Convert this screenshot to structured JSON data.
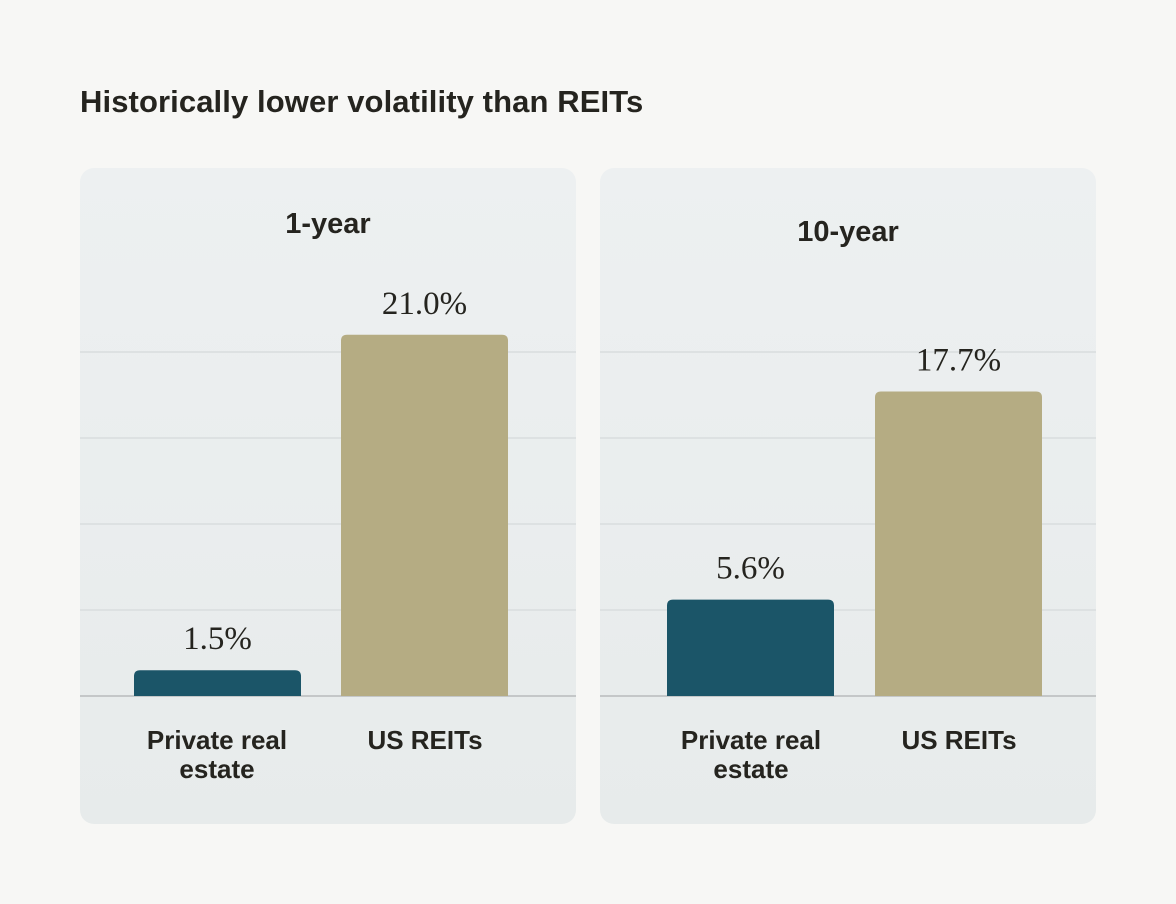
{
  "title": "Historically lower volatility than REITs",
  "colors": {
    "private": "#1b5568",
    "reits": "#b5ac83",
    "background": "#f7f7f5"
  },
  "chart_data": [
    {
      "type": "bar",
      "title": "1-year",
      "categories": [
        "Private real estate",
        "US REITs"
      ],
      "values": [
        1.5,
        21.0
      ],
      "labels": [
        "1.5%",
        "21.0%"
      ],
      "ylim": [
        0,
        20
      ],
      "grid": true
    },
    {
      "type": "bar",
      "title": "10-year",
      "categories": [
        "Private real estate",
        "US REITs"
      ],
      "values": [
        5.6,
        17.7
      ],
      "labels": [
        "5.6%",
        "17.7%"
      ],
      "ylim": [
        0,
        20
      ],
      "grid": true
    }
  ]
}
